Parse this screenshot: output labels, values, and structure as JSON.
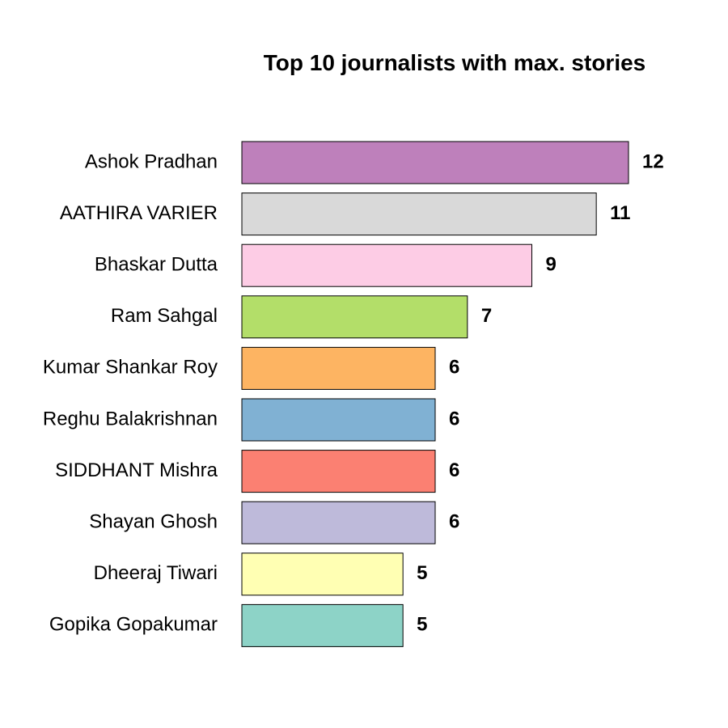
{
  "chart_data": {
    "type": "bar",
    "orientation": "horizontal",
    "title": "Top 10 journalists with max. stories",
    "xlabel": "",
    "ylabel": "",
    "xlim": [
      0,
      12
    ],
    "grid": false,
    "categories": [
      "Ashok Pradhan",
      "AATHIRA VARIER",
      "Bhaskar Dutta",
      "Ram Sahgal",
      "Kumar Shankar Roy",
      "Reghu Balakrishnan",
      "SIDDHANT Mishra",
      "Shayan Ghosh",
      "Dheeraj Tiwari",
      "Gopika Gopakumar"
    ],
    "values": [
      12,
      11,
      9,
      7,
      6,
      6,
      6,
      6,
      5,
      5
    ],
    "colors": [
      "#BE80BB",
      "#D9D9D9",
      "#FDCCE5",
      "#B3DE69",
      "#FDB462",
      "#80B1D3",
      "#FB8072",
      "#BEBADA",
      "#FFFFB3",
      "#8DD3C7"
    ]
  }
}
